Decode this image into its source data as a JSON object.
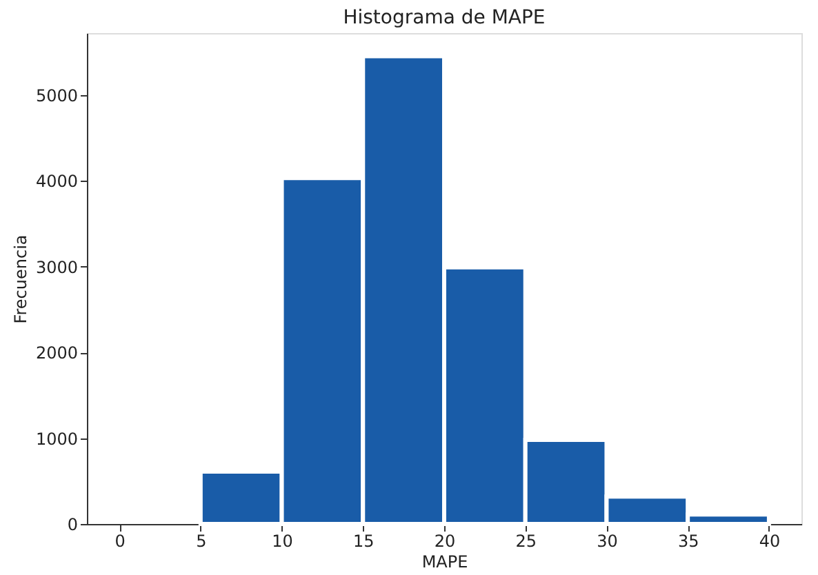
{
  "chart_data": {
    "type": "histogram",
    "title": "Histograma de MAPE",
    "xlabel": "MAPE",
    "ylabel": "Frecuencia",
    "bins": [
      0,
      5,
      10,
      15,
      20,
      25,
      30,
      35,
      40
    ],
    "values": [
      0,
      610,
      4030,
      5450,
      2990,
      980,
      320,
      110
    ],
    "color": "#195ca8",
    "xlim": [
      -2,
      42
    ],
    "xticks": [
      0,
      5,
      10,
      15,
      20,
      25,
      30,
      35,
      40
    ],
    "ylim": [
      0,
      5720
    ],
    "yticks": [
      0,
      1000,
      2000,
      3000,
      4000,
      5000
    ],
    "grid": false,
    "legend": false
  }
}
